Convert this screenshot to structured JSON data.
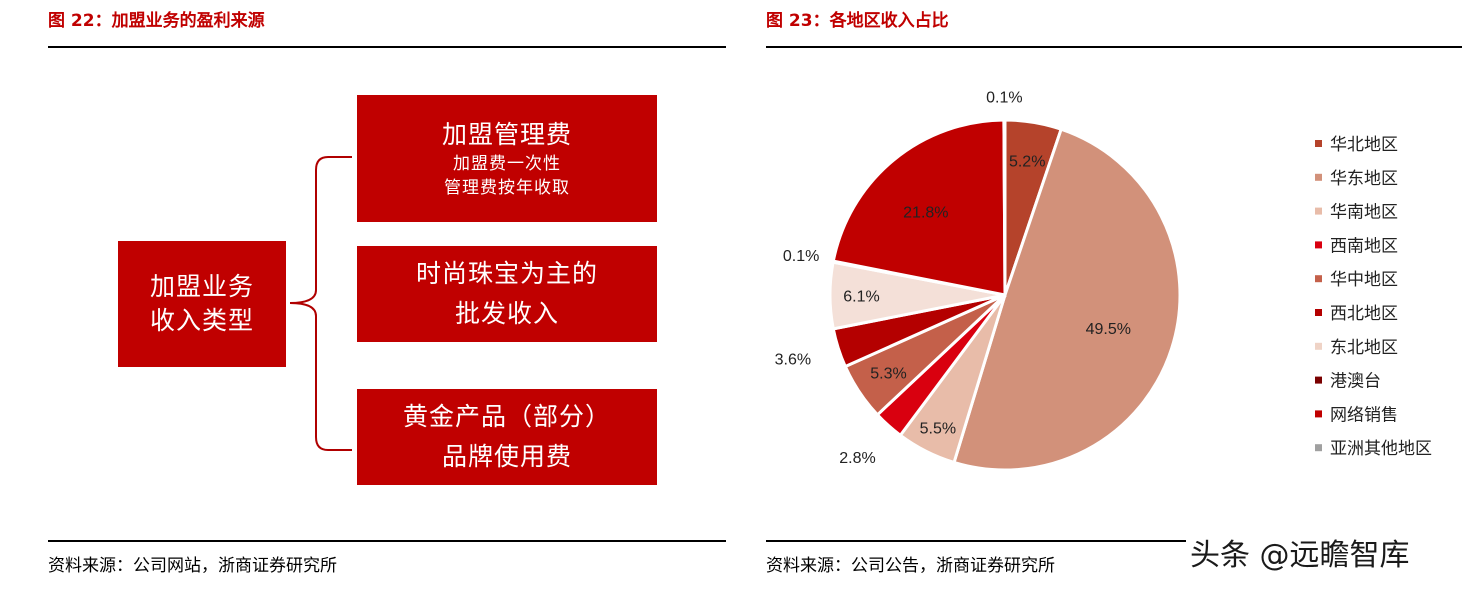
{
  "left_figure": {
    "title": "图 22：加盟业务的盈利来源",
    "root": {
      "line1": "加盟业务",
      "line2": "收入类型"
    },
    "boxes": [
      {
        "line1": "加盟管理费",
        "line2": "加盟费一次性",
        "line3": "管理费按年收取"
      },
      {
        "line1": "时尚珠宝为主的",
        "line2": "批发收入"
      },
      {
        "line1": "黄金产品（部分）",
        "line2": "品牌使用费"
      }
    ],
    "source": "资料来源：公司网站，浙商证券研究所"
  },
  "right_figure": {
    "title": "图 23：各地区收入占比",
    "source": "资料来源：公司公告，浙商证券研究所"
  },
  "watermark": "头条 @远瞻智库",
  "colors": {
    "accent": "#c00000"
  },
  "chart_data": {
    "type": "pie",
    "title": "",
    "legend_position": "right",
    "slices": [
      {
        "label": "华北地区",
        "value": 5.2,
        "display": "5.2%",
        "color": "#b5432b"
      },
      {
        "label": "华东地区",
        "value": 49.5,
        "display": "49.5%",
        "color": "#d2917a"
      },
      {
        "label": "华南地区",
        "value": 5.5,
        "display": "5.5%",
        "color": "#e8bca9"
      },
      {
        "label": "西南地区",
        "value": 2.8,
        "display": "2.8%",
        "color": "#d9000f"
      },
      {
        "label": "华中地区",
        "value": 5.3,
        "display": "5.3%",
        "color": "#c4604a"
      },
      {
        "label": "西北地区",
        "value": 3.6,
        "display": "3.6%",
        "color": "#b40000"
      },
      {
        "label": "东北地区",
        "value": 6.1,
        "display": "6.1%",
        "color": "#f4e0d8"
      },
      {
        "label": "港澳台",
        "value": 0.1,
        "display": "0.1%",
        "color": "#7a0000"
      },
      {
        "label": "网络销售",
        "value": 21.8,
        "display": "21.8%",
        "color": "#c00000"
      },
      {
        "label": "亚洲其他地区",
        "value": 0.1,
        "display": "0.1%",
        "color": "#a0a0a0"
      }
    ]
  }
}
